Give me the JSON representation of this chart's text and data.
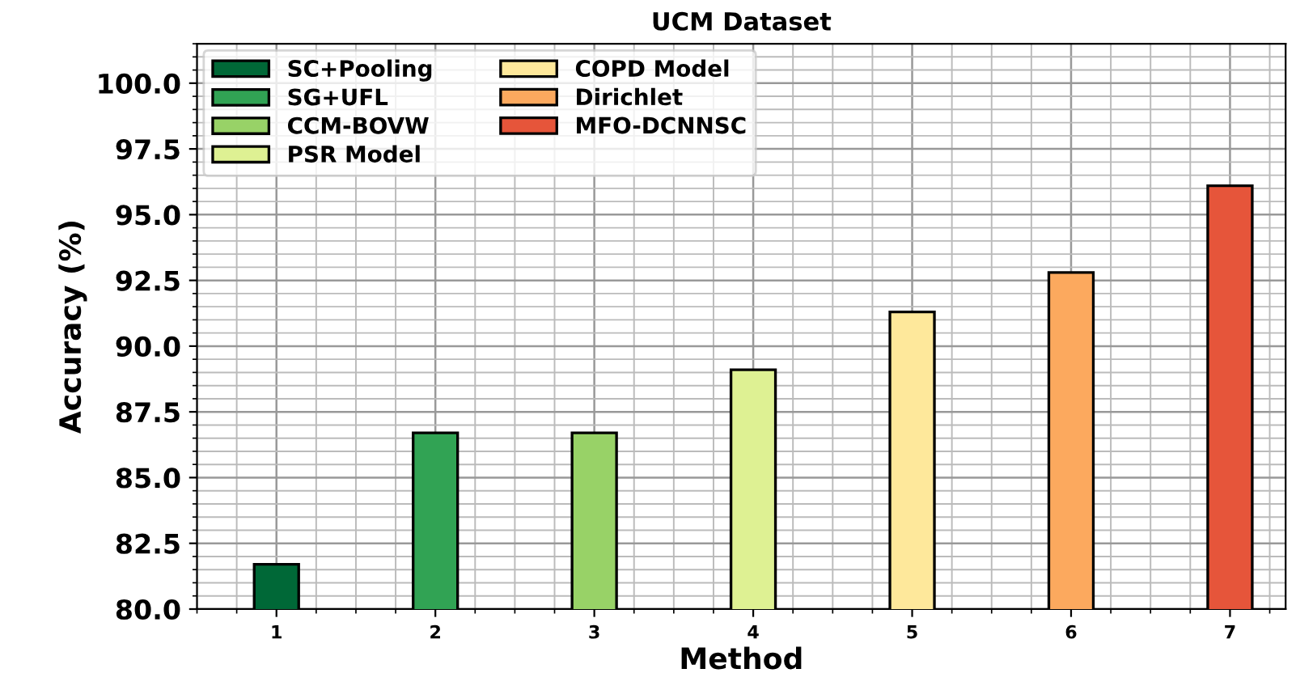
{
  "chart_data": {
    "type": "bar",
    "title": "UCM Dataset",
    "xlabel": "Method",
    "ylabel": "Accuracy (%)",
    "series": [
      {
        "name": "SC+Pooling",
        "color": "#006837",
        "x": [
          1
        ],
        "values": [
          81.7
        ]
      },
      {
        "name": "SG+UFL",
        "color": "#31a354",
        "x": [
          2
        ],
        "values": [
          86.7
        ]
      },
      {
        "name": "CCM-BOVW",
        "color": "#98d267",
        "x": [
          3
        ],
        "values": [
          86.7
        ]
      },
      {
        "name": "PSR Model",
        "color": "#def193",
        "x": [
          4
        ],
        "values": [
          89.1
        ]
      },
      {
        "name": "COPD Model",
        "color": "#fee89b",
        "x": [
          5
        ],
        "values": [
          91.3
        ]
      },
      {
        "name": "Dirichlet",
        "color": "#fca95e",
        "x": [
          6
        ],
        "values": [
          92.8
        ]
      },
      {
        "name": "MFO-DCNNSC",
        "color": "#e6553a",
        "x": [
          7
        ],
        "values": [
          96.1
        ]
      }
    ],
    "xlim": [
      0.5,
      7.35
    ],
    "xticks": [
      1,
      2,
      3,
      4,
      5,
      6,
      7
    ],
    "ylim": [
      80,
      101.5
    ],
    "yticks": [
      {
        "value": 80,
        "label": "80.0"
      },
      {
        "value": 82.5,
        "label": "82.5"
      },
      {
        "value": 85,
        "label": "85.0"
      },
      {
        "value": 87.5,
        "label": "87.5"
      },
      {
        "value": 90,
        "label": "90.0"
      },
      {
        "value": 92.5,
        "label": "92.5"
      },
      {
        "value": 95,
        "label": "95.0"
      },
      {
        "value": 97.5,
        "label": "97.5"
      },
      {
        "value": 100,
        "label": "100.0"
      }
    ],
    "grid": true,
    "legend": "top left"
  }
}
